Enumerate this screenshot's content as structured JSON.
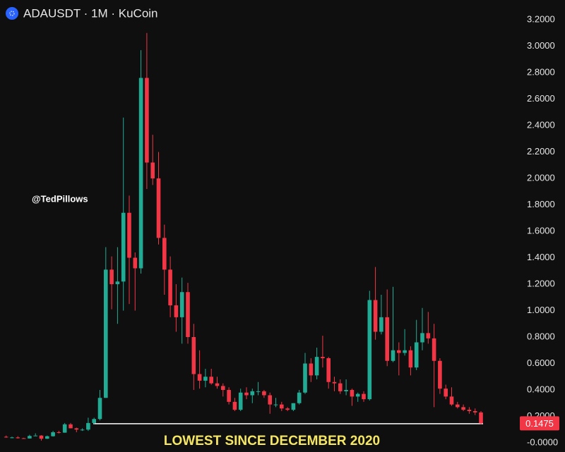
{
  "chart_data": {
    "type": "candlestick",
    "title": "ADAUSDT · 1M · KuCoin",
    "watermark": "@TedPillows",
    "annotation": "LOWEST SINCE DECEMBER 2020",
    "up_color": "#22ab94",
    "down_color": "#f23645",
    "support_color": "#ffffff",
    "annotation_color": "#f5e663",
    "support_level": 0.145,
    "ylim": [
      0,
      3.2
    ],
    "yticks": [
      {
        "value": 0,
        "label": "-0.0000"
      },
      {
        "value": 0.2,
        "label": "0.2000"
      },
      {
        "value": 0.4,
        "label": "0.4000"
      },
      {
        "value": 0.6,
        "label": "0.6000"
      },
      {
        "value": 0.8,
        "label": "0.8000"
      },
      {
        "value": 1.0,
        "label": "1.0000"
      },
      {
        "value": 1.2,
        "label": "1.2000"
      },
      {
        "value": 1.4,
        "label": "1.4000"
      },
      {
        "value": 1.6,
        "label": "1.6000"
      },
      {
        "value": 1.8,
        "label": "1.8000"
      },
      {
        "value": 2.0,
        "label": "2.0000"
      },
      {
        "value": 2.2,
        "label": "2.2000"
      },
      {
        "value": 2.4,
        "label": "2.4000"
      },
      {
        "value": 2.6,
        "label": "2.6000"
      },
      {
        "value": 2.8,
        "label": "2.8000"
      },
      {
        "value": 3.0,
        "label": "3.0000"
      },
      {
        "value": 3.2,
        "label": "3.2000"
      }
    ],
    "open": [
      0.046,
      0.041,
      0.041,
      0.035,
      0.033,
      0.052,
      0.055,
      0.031,
      0.05,
      0.08,
      0.077,
      0.14,
      0.11,
      0.1,
      0.1,
      0.15,
      0.18,
      0.34,
      1.31,
      1.2,
      1.22,
      1.74,
      1.4,
      1.32,
      2.76,
      2.12,
      2.0,
      1.55,
      1.31,
      1.04,
      0.95,
      1.14,
      0.8,
      0.52,
      0.47,
      0.5,
      0.45,
      0.43,
      0.4,
      0.31,
      0.25,
      0.38,
      0.36,
      0.39,
      0.39,
      0.36,
      0.29,
      0.29,
      0.26,
      0.25,
      0.3,
      0.38,
      0.6,
      0.51,
      0.65,
      0.64,
      0.46,
      0.45,
      0.39,
      0.4,
      0.35,
      0.37,
      0.33,
      1.08,
      0.84,
      0.95,
      0.62,
      0.7,
      0.68,
      0.7,
      0.57,
      0.76,
      0.83,
      0.79,
      0.62,
      0.41,
      0.35,
      0.29,
      0.27,
      0.25,
      0.24,
      0.23
    ],
    "high": [
      0.055,
      0.047,
      0.05,
      0.038,
      0.061,
      0.072,
      0.058,
      0.055,
      0.09,
      0.091,
      0.15,
      0.15,
      0.115,
      0.11,
      0.19,
      0.19,
      0.4,
      1.48,
      1.41,
      1.48,
      2.46,
      1.87,
      1.44,
      2.97,
      3.1,
      2.33,
      2.2,
      1.65,
      1.41,
      1.2,
      1.25,
      1.21,
      0.9,
      0.7,
      0.56,
      0.56,
      0.5,
      0.45,
      0.42,
      0.34,
      0.41,
      0.42,
      0.41,
      0.46,
      0.4,
      0.38,
      0.34,
      0.31,
      0.27,
      0.3,
      0.4,
      0.68,
      0.64,
      0.72,
      0.81,
      0.65,
      0.5,
      0.48,
      0.48,
      0.41,
      0.38,
      0.39,
      1.15,
      1.33,
      1.12,
      1.16,
      1.18,
      0.76,
      0.86,
      0.73,
      0.93,
      1.02,
      0.99,
      0.9,
      0.64,
      0.44,
      0.42,
      0.31,
      0.29,
      0.27,
      0.26,
      0.24
    ],
    "low": [
      0.038,
      0.034,
      0.032,
      0.032,
      0.033,
      0.052,
      0.017,
      0.029,
      0.047,
      0.071,
      0.076,
      0.11,
      0.08,
      0.09,
      0.09,
      0.14,
      0.17,
      0.34,
      1.01,
      0.9,
      1.0,
      1.05,
      1.0,
      1.28,
      1.92,
      1.95,
      1.5,
      1.12,
      0.95,
      0.84,
      0.75,
      0.75,
      0.4,
      0.41,
      0.42,
      0.44,
      0.41,
      0.35,
      0.29,
      0.24,
      0.24,
      0.33,
      0.3,
      0.36,
      0.34,
      0.22,
      0.27,
      0.24,
      0.24,
      0.24,
      0.29,
      0.37,
      0.46,
      0.48,
      0.57,
      0.41,
      0.39,
      0.37,
      0.36,
      0.28,
      0.31,
      0.31,
      0.32,
      0.78,
      0.82,
      0.58,
      0.61,
      0.51,
      0.66,
      0.51,
      0.55,
      0.7,
      0.75,
      0.27,
      0.37,
      0.33,
      0.28,
      0.26,
      0.24,
      0.22,
      0.21,
      0.14
    ],
    "close": [
      0.041,
      0.041,
      0.035,
      0.033,
      0.052,
      0.055,
      0.031,
      0.05,
      0.08,
      0.077,
      0.14,
      0.11,
      0.1,
      0.1,
      0.15,
      0.18,
      0.34,
      1.31,
      1.2,
      1.22,
      1.74,
      1.4,
      1.32,
      2.76,
      2.12,
      2.0,
      1.55,
      1.31,
      1.04,
      0.95,
      1.14,
      0.8,
      0.52,
      0.47,
      0.5,
      0.45,
      0.43,
      0.4,
      0.31,
      0.25,
      0.38,
      0.36,
      0.39,
      0.39,
      0.36,
      0.29,
      0.29,
      0.26,
      0.25,
      0.3,
      0.38,
      0.6,
      0.51,
      0.65,
      0.64,
      0.46,
      0.45,
      0.39,
      0.4,
      0.35,
      0.37,
      0.33,
      1.08,
      0.84,
      0.95,
      0.62,
      0.7,
      0.68,
      0.7,
      0.57,
      0.76,
      0.83,
      0.79,
      0.62,
      0.41,
      0.35,
      0.29,
      0.27,
      0.25,
      0.24,
      0.23,
      0.1475
    ]
  }
}
